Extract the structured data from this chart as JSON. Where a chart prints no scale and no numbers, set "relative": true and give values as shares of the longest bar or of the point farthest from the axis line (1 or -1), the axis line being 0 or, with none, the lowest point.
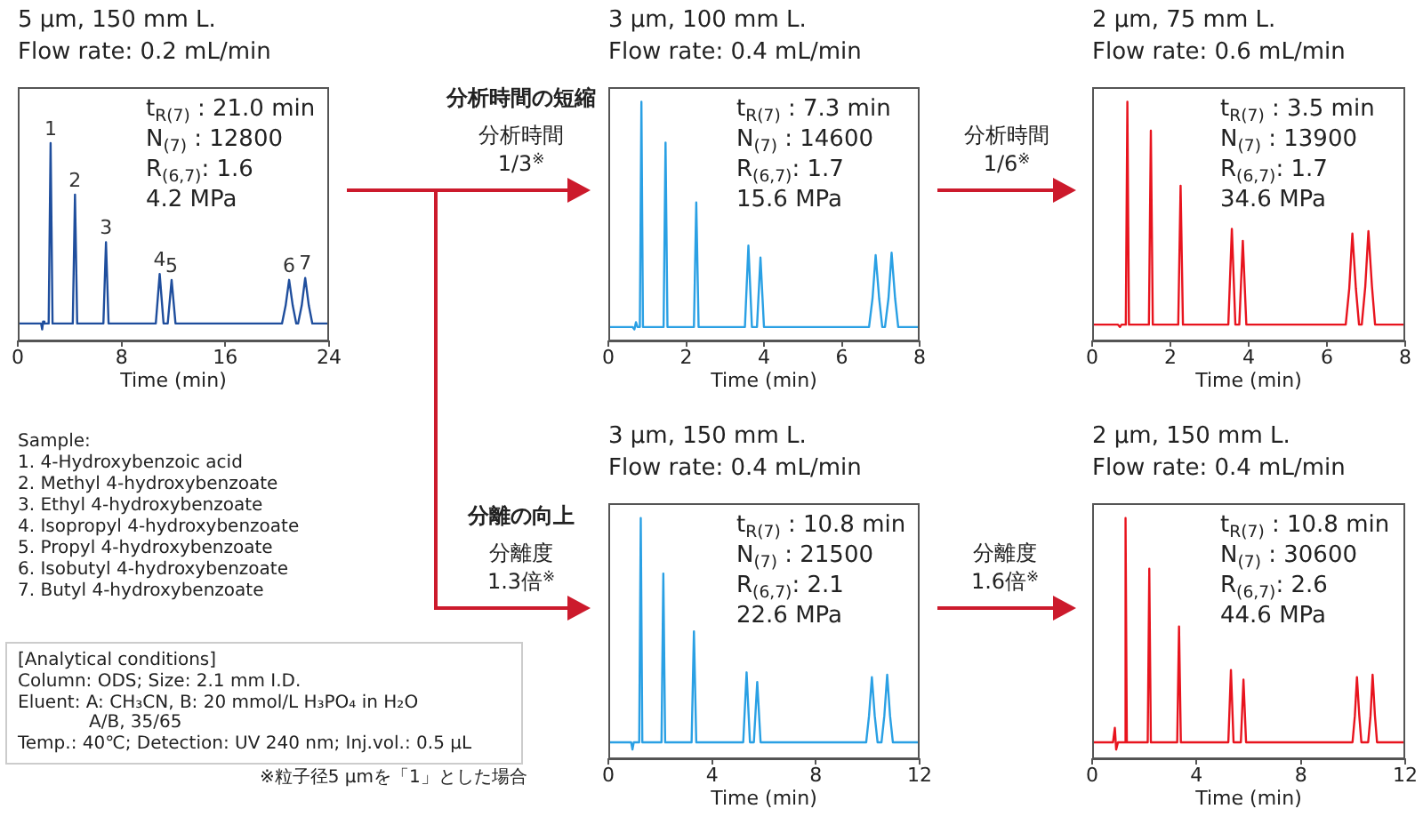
{
  "chart_data": [
    {
      "type": "line",
      "title": "5 µm, 150 mm L.",
      "subtitle": "Flow rate: 0.2 mL/min",
      "xlabel": "Time (min)",
      "relative": true,
      "color": "#1f4e9d",
      "xlim": [
        0,
        24
      ],
      "xticks": [
        0,
        8,
        16,
        24
      ],
      "x": [
        0,
        0.9,
        1.8,
        1.88,
        1.95,
        2.05,
        2.38,
        2.53,
        2.68,
        3.5,
        4.24,
        4.41,
        4.58,
        5.5,
        6.6,
        6.8,
        7,
        8.5,
        9.5,
        10.64,
        10.94,
        11.24,
        11.56,
        11.86,
        12.16,
        13.5,
        15,
        16.5,
        18,
        19.5,
        20.37,
        20.65,
        20.92,
        21.2,
        21.47,
        21.61,
        21.89,
        22.16,
        22.44,
        22.71,
        23.2,
        24
      ],
      "values": [
        0.09,
        0.09,
        0.09,
        0.06,
        0.1,
        0.09,
        0.09,
        1,
        0.09,
        0.09,
        0.09,
        0.74,
        0.09,
        0.09,
        0.09,
        0.5,
        0.09,
        0.09,
        0.09,
        0.09,
        0.34,
        0.09,
        0.09,
        0.31,
        0.09,
        0.09,
        0.09,
        0.09,
        0.09,
        0.09,
        0.09,
        0.18,
        0.31,
        0.18,
        0.09,
        0.09,
        0.18,
        0.32,
        0.18,
        0.09,
        0.09,
        0.09
      ],
      "annotations": [
        {
          "text": "1",
          "x": 2.53,
          "y": 1
        },
        {
          "text": "2",
          "x": 4.41,
          "y": 0.74
        },
        {
          "text": "3",
          "x": 6.8,
          "y": 0.5
        },
        {
          "text": "4",
          "x": 10.94,
          "y": 0.34
        },
        {
          "text": "5",
          "x": 11.86,
          "y": 0.31
        },
        {
          "text": "6",
          "x": 20.92,
          "y": 0.31
        },
        {
          "text": "7",
          "x": 22.16,
          "y": 0.32
        },
        "t$_{R(7)}$ : 21.0 min",
        "N$_{(7)}$ : 12800",
        "R$_{(6,7)}$: 1.6",
        "4.2 MPa"
      ]
    },
    {
      "type": "line",
      "title": "3 µm, 100 mm L.",
      "subtitle": "Flow rate: 0.4 mL/min",
      "xlabel": "Time (min)",
      "relative": true,
      "color": "#2aa0e4",
      "xlim": [
        0,
        8
      ],
      "xticks": [
        0,
        2,
        4,
        6,
        8
      ],
      "x": [
        0,
        0.3,
        0.62,
        0.67,
        0.71,
        0.75,
        0.81,
        0.85,
        0.89,
        1.2,
        1.42,
        1.47,
        1.52,
        1.9,
        2.2,
        2.26,
        2.32,
        2.8,
        3.2,
        3.51,
        3.6,
        3.69,
        3.82,
        3.91,
        4,
        4.6,
        5.2,
        5.8,
        6.3,
        6.7,
        6.79,
        6.87,
        6.96,
        7.04,
        7.11,
        7.2,
        7.28,
        7.37,
        7.45,
        7.7,
        8
      ],
      "values": [
        0.06,
        0.06,
        0.06,
        0.05,
        0.08,
        0.06,
        0.06,
        1,
        0.06,
        0.06,
        0.06,
        0.83,
        0.06,
        0.06,
        0.06,
        0.58,
        0.06,
        0.06,
        0.06,
        0.06,
        0.4,
        0.06,
        0.06,
        0.35,
        0.06,
        0.06,
        0.06,
        0.06,
        0.06,
        0.06,
        0.18,
        0.36,
        0.18,
        0.06,
        0.06,
        0.18,
        0.37,
        0.18,
        0.06,
        0.06,
        0.06
      ],
      "annotations": [
        "t$_{R(7)}$ : 7.3 min",
        "N$_{(7)}$ : 14600",
        "R$_{(6,7)}$: 1.7",
        "15.6 MPa",
        "分析時間の短縮",
        "分析時間",
        "1/3$^{※}$"
      ]
    },
    {
      "type": "line",
      "title": "2 µm, 75 mm L.",
      "subtitle": "Flow rate: 0.6 mL/min",
      "xlabel": "Time (min)",
      "relative": true,
      "color": "#e8141e",
      "xlim": [
        0,
        8
      ],
      "xticks": [
        0,
        2,
        4,
        6,
        8
      ],
      "x": [
        0,
        0.3,
        0.66,
        0.71,
        0.75,
        0.86,
        0.9,
        0.94,
        1.2,
        1.45,
        1.5,
        1.55,
        1.9,
        2.2,
        2.26,
        2.32,
        2.8,
        3.2,
        3.48,
        3.57,
        3.66,
        3.76,
        3.85,
        3.94,
        4.5,
        5.1,
        5.7,
        6.2,
        6.48,
        6.57,
        6.65,
        6.74,
        6.82,
        6.89,
        6.98,
        7.06,
        7.15,
        7.23,
        7.6,
        8
      ],
      "values": [
        0.07,
        0.07,
        0.07,
        0.06,
        0.07,
        0.07,
        1,
        0.07,
        0.07,
        0.07,
        0.88,
        0.07,
        0.07,
        0.07,
        0.65,
        0.07,
        0.07,
        0.07,
        0.07,
        0.47,
        0.07,
        0.07,
        0.42,
        0.07,
        0.07,
        0.07,
        0.07,
        0.07,
        0.07,
        0.22,
        0.45,
        0.22,
        0.07,
        0.07,
        0.23,
        0.46,
        0.23,
        0.07,
        0.07,
        0.07
      ],
      "annotations": [
        "t$_{R(7)}$ : 3.5 min",
        "N$_{(7)}$ : 13900",
        "R$_{(6,7)}$: 1.7",
        "34.6 MPa",
        "分析時間",
        "1/6$^{※}$"
      ]
    },
    {
      "type": "other",
      "annotations": [
        "Sample:",
        "1. 4-Hydroxybenzoic acid",
        "2. Methyl 4-hydroxybenzoate",
        "3. Ethyl 4-hydroxybenzoate",
        "4. Isopropyl 4-hydroxybenzoate",
        "5. Propyl 4-hydroxybenzoate",
        "6. Isobutyl 4-hydroxybenzoate",
        "7. Butyl 4-hydroxybenzoate"
      ]
    },
    {
      "type": "line",
      "title": "3 µm, 150 mm L.",
      "subtitle": "Flow rate: 0.4 mL/min",
      "xlabel": "Time (min)",
      "relative": true,
      "color": "#2aa0e4",
      "xlim": [
        0,
        12
      ],
      "xticks": [
        0,
        4,
        8,
        12
      ],
      "x": [
        0,
        0.5,
        0.88,
        0.93,
        0.98,
        1.19,
        1.25,
        1.31,
        1.7,
        2.05,
        2.12,
        2.19,
        2.7,
        3.21,
        3.3,
        3.39,
        4,
        4.6,
        5.2,
        5.33,
        5.46,
        5.61,
        5.74,
        5.87,
        6.8,
        7.8,
        8.8,
        9.4,
        9.94,
        10.05,
        10.16,
        10.27,
        10.38,
        10.53,
        10.64,
        10.75,
        10.86,
        10.97,
        11.5,
        12
      ],
      "values": [
        0.07,
        0.07,
        0.07,
        0.04,
        0.07,
        0.07,
        1,
        0.07,
        0.07,
        0.07,
        0.77,
        0.07,
        0.07,
        0.07,
        0.53,
        0.07,
        0.07,
        0.07,
        0.07,
        0.36,
        0.07,
        0.07,
        0.32,
        0.07,
        0.07,
        0.07,
        0.07,
        0.07,
        0.07,
        0.18,
        0.34,
        0.18,
        0.07,
        0.07,
        0.18,
        0.35,
        0.18,
        0.07,
        0.07,
        0.07
      ],
      "annotations": [
        "t$_{R(7)}$ : 10.8 min",
        "N$_{(7)}$ : 21500",
        "R$_{(6,7)}$: 2.1",
        "22.6 MPa",
        "分離の向上",
        "分離度",
        "1.3倍$^{※}$"
      ]
    },
    {
      "type": "line",
      "title": "2 µm, 150 mm L.",
      "subtitle": "Flow rate: 0.4 mL/min",
      "xlabel": "Time (min)",
      "relative": true,
      "color": "#e8141e",
      "xlim": [
        0,
        12
      ],
      "xticks": [
        0,
        4,
        8,
        12
      ],
      "x": [
        0,
        0.5,
        0.8,
        0.87,
        0.92,
        0.99,
        1.23,
        1.28,
        1.33,
        1.7,
        2.13,
        2.19,
        2.25,
        2.8,
        3.26,
        3.33,
        3.4,
        4,
        4.6,
        5.22,
        5.32,
        5.42,
        5.7,
        5.8,
        5.9,
        6.8,
        7.8,
        8.8,
        9.4,
        9.98,
        10.07,
        10.15,
        10.24,
        10.32,
        10.58,
        10.67,
        10.75,
        10.84,
        10.92,
        11.5,
        12
      ],
      "values": [
        0.07,
        0.07,
        0.07,
        0.13,
        0.04,
        0.07,
        0.07,
        1,
        0.07,
        0.07,
        0.07,
        0.79,
        0.07,
        0.07,
        0.07,
        0.55,
        0.07,
        0.07,
        0.07,
        0.07,
        0.37,
        0.07,
        0.07,
        0.33,
        0.07,
        0.07,
        0.07,
        0.07,
        0.07,
        0.07,
        0.18,
        0.34,
        0.18,
        0.07,
        0.07,
        0.18,
        0.35,
        0.18,
        0.07,
        0.07,
        0.07
      ],
      "annotations": [
        "t$_{R(7)}$ : 10.8 min",
        "N$_{(7)}$ : 30600",
        "R$_{(6,7)}$: 2.6",
        "44.6 MPa",
        "分離度",
        "1.6倍$^{※}$"
      ]
    },
    {
      "type": "other",
      "annotations": [
        "[Analytical conditions]",
        "Column: ODS; Size: 2.1 mm I.D.",
        "Eluent: A: CH₃CN, B: 20 mmol/L H₃PO₄ in H₂O",
        "A/B, 35/65",
        "Temp.: 40℃; Detection: UV 240 nm; Inj.vol.: 0.5 µL"
      ]
    },
    {
      "type": "other",
      "annotations": [
        "※粒子径5 µmを「1」とした場合"
      ]
    }
  ]
}
